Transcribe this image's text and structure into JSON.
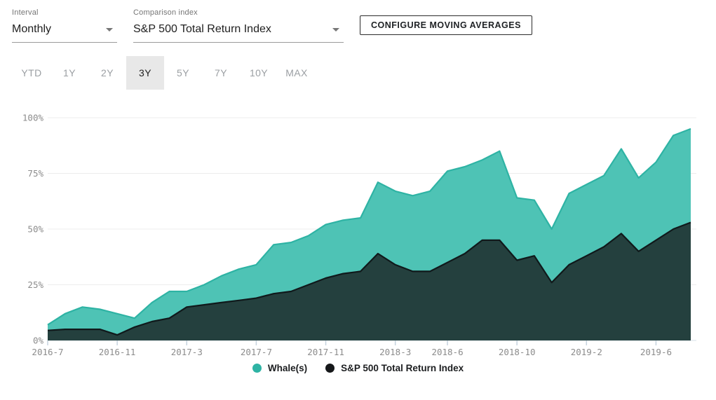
{
  "controls": {
    "interval": {
      "label": "Interval",
      "value": "Monthly"
    },
    "comparison": {
      "label": "Comparison index",
      "value": "S&P 500 Total Return Index"
    },
    "configure_button": "CONFIGURE MOVING AVERAGES"
  },
  "range_tabs": {
    "options": [
      "YTD",
      "1Y",
      "2Y",
      "3Y",
      "5Y",
      "7Y",
      "10Y",
      "MAX"
    ],
    "selected": "3Y"
  },
  "chart_data": {
    "type": "area",
    "x": [
      "2016-7",
      "2016-8",
      "2016-9",
      "2016-10",
      "2016-11",
      "2016-12",
      "2017-1",
      "2017-2",
      "2017-3",
      "2017-4",
      "2017-5",
      "2017-6",
      "2017-7",
      "2017-8",
      "2017-9",
      "2017-10",
      "2017-11",
      "2017-12",
      "2018-1",
      "2018-2",
      "2018-3",
      "2018-4",
      "2018-5",
      "2018-6",
      "2018-7",
      "2018-8",
      "2018-9",
      "2018-10",
      "2018-11",
      "2018-12",
      "2019-1",
      "2019-2",
      "2019-3",
      "2019-4",
      "2019-5",
      "2019-6",
      "2019-7",
      "2019-8"
    ],
    "series": [
      {
        "name": "Whale(s)",
        "line_color": "#2eb3a4",
        "fill_color": "#4ec3b5",
        "values": [
          7,
          12,
          15,
          14,
          12,
          10,
          17,
          22,
          22,
          25,
          29,
          32,
          34,
          43,
          44,
          47,
          52,
          54,
          55,
          71,
          67,
          65,
          67,
          76,
          78,
          81,
          85,
          64,
          63,
          50,
          66,
          70,
          74,
          86,
          73,
          80,
          92,
          95
        ]
      },
      {
        "name": "S&P 500 Total Return Index",
        "line_color": "#10191b",
        "fill_color": "#24403e",
        "values": [
          4.5,
          5,
          5,
          5,
          2.5,
          6,
          8.5,
          10,
          15,
          16,
          17,
          18,
          19,
          21,
          22,
          25,
          28,
          30,
          31,
          39,
          34,
          31,
          31,
          35,
          39,
          45,
          45,
          36,
          38,
          26,
          34,
          38,
          42,
          48,
          40,
          45,
          50,
          53
        ]
      }
    ],
    "y_ticks": [
      "0%",
      "25%",
      "50%",
      "75%",
      "100%"
    ],
    "y_tick_values": [
      0,
      25,
      50,
      75,
      100
    ],
    "ylim": [
      0,
      100
    ],
    "x_tick_labels": [
      "2016-7",
      "2016-11",
      "2017-3",
      "2017-7",
      "2017-11",
      "2018-3",
      "2018-6",
      "2018-10",
      "2019-2",
      "2019-6"
    ],
    "grid": true,
    "legend_position": "bottom"
  },
  "legend": {
    "items": [
      {
        "label": "Whale(s)",
        "color": "#2eb3a4"
      },
      {
        "label": "S&P 500 Total Return Index",
        "color": "#16181a"
      }
    ]
  }
}
